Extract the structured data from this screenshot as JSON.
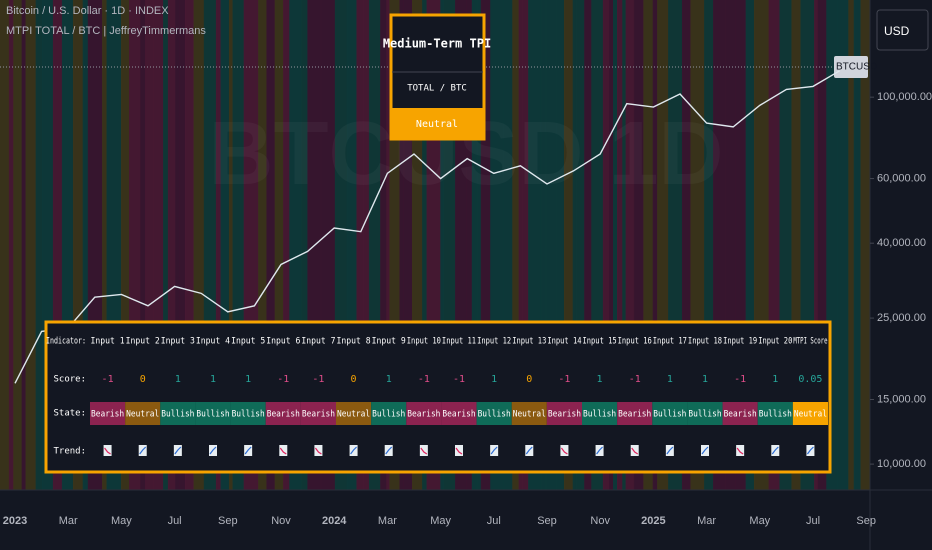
{
  "header": {
    "symbol": "Bitcoin / U.S. Dollar · 1D · INDEX",
    "indicator": "MTPI TOTAL / BTC | JeffreyTimmermans",
    "price_tag": "BTCUSD",
    "currency": "USD",
    "watermark": "BTCUSD 1D"
  },
  "chart_data": {
    "type": "line",
    "log_scale": true,
    "categories": [
      "2023",
      null,
      "Mar",
      null,
      "May",
      null,
      "Jul",
      null,
      "Sep",
      null,
      "Nov",
      null,
      "2024",
      null,
      "Mar",
      null,
      "May",
      null,
      "Jul",
      null,
      "Sep",
      null,
      "Nov",
      null,
      "2025",
      null,
      "Mar",
      null,
      "May",
      null,
      "Jul",
      null,
      "Sep"
    ],
    "series": [
      {
        "name": "BTCUSD",
        "color": "#dfe8ee",
        "values": [
          16600,
          23000,
          23500,
          28500,
          29000,
          27000,
          30500,
          29200,
          26000,
          27000,
          35000,
          38000,
          44000,
          43000,
          62000,
          70000,
          60000,
          68000,
          62000,
          65000,
          58000,
          63000,
          70000,
          96000,
          94000,
          102000,
          85000,
          83000,
          95000,
          105000,
          107000,
          118000,
          null
        ]
      }
    ],
    "ylim": [
      8500,
      184000
    ],
    "yticks": [
      {
        "value": 10000,
        "label": "10,000.00"
      },
      {
        "value": 15000,
        "label": "15,000.00"
      },
      {
        "value": 25000,
        "label": "25,000.00"
      },
      {
        "value": 40000,
        "label": "40,000.00"
      },
      {
        "value": 60000,
        "label": "60,000.00"
      },
      {
        "value": 100000,
        "label": "100,000.00"
      }
    ]
  },
  "tpi_box": {
    "title": "Medium-Term TPI",
    "subtitle": "TOTAL / BTC",
    "state": "Neutral"
  },
  "table": {
    "row_labels": [
      "Indicator:",
      "Score:",
      "State:",
      "Trend:"
    ],
    "columns": [
      "Input 1",
      "Input 2",
      "Input 3",
      "Input 4",
      "Input 5",
      "Input 6",
      "Input 7",
      "Input 8",
      "Input 9",
      "Input 10",
      "Input 11",
      "Input 12",
      "Input 13",
      "Input 14",
      "Input 15",
      "Input 16",
      "Input 17",
      "Input 18",
      "Input 19",
      "Input 20",
      "MTPI Score"
    ],
    "scores": [
      -1,
      0,
      1,
      1,
      1,
      -1,
      -1,
      0,
      1,
      -1,
      -1,
      1,
      0,
      -1,
      1,
      -1,
      1,
      1,
      -1,
      1,
      0.05
    ],
    "states": [
      "Bearish",
      "Neutral",
      "Bullish",
      "Bullish",
      "Bullish",
      "Bearish",
      "Bearish",
      "Neutral",
      "Bullish",
      "Bearish",
      "Bearish",
      "Bullish",
      "Neutral",
      "Bearish",
      "Bullish",
      "Bearish",
      "Bullish",
      "Bullish",
      "Bearish",
      "Bullish",
      "Neutral"
    ]
  }
}
